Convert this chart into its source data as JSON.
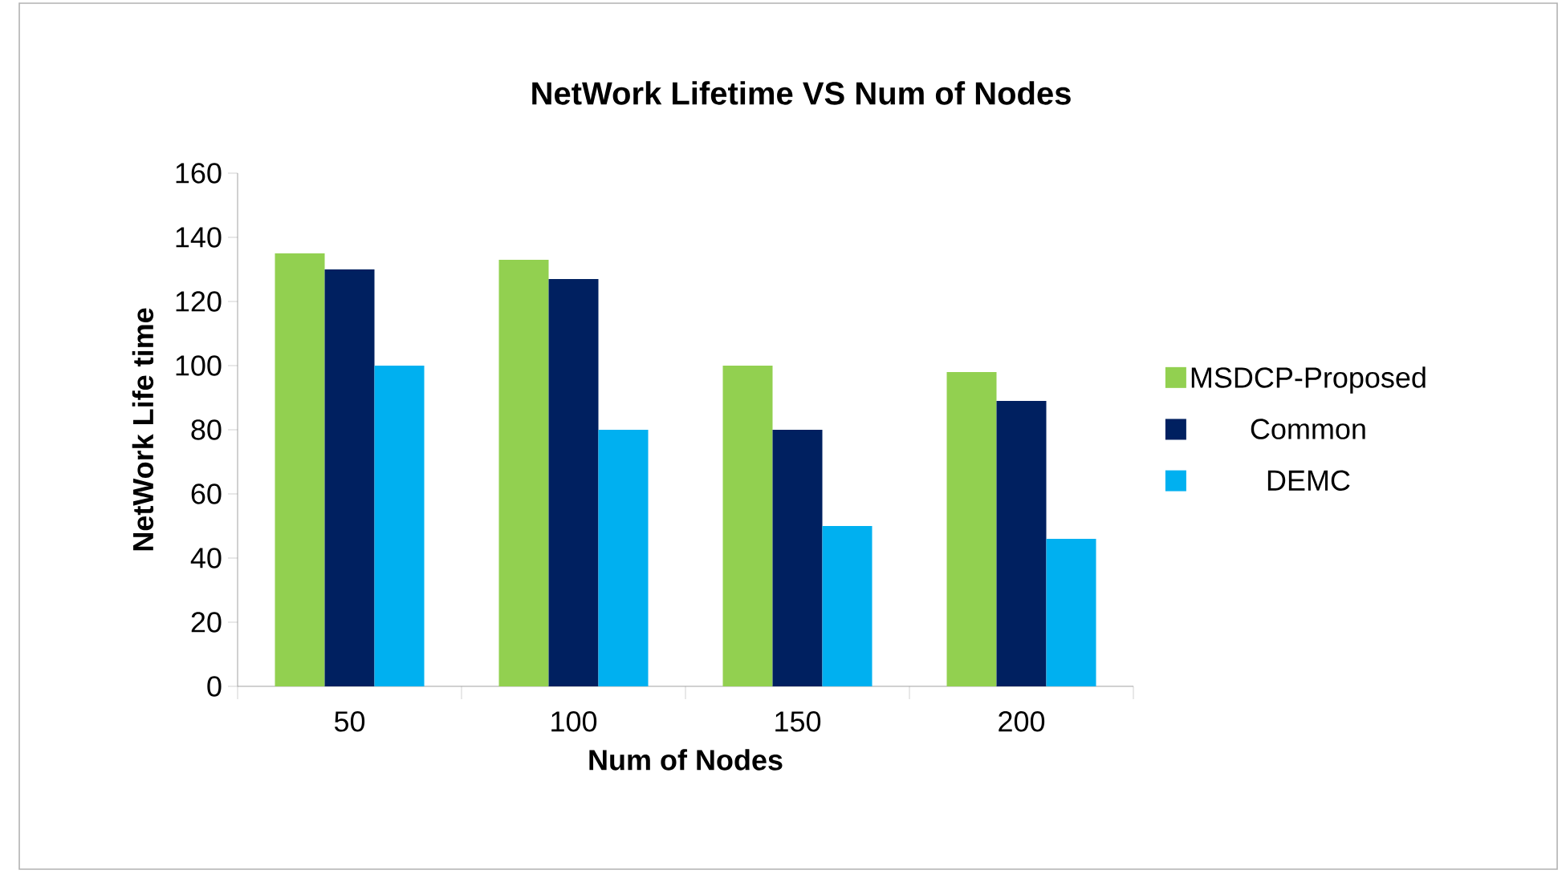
{
  "chart_data": {
    "type": "bar",
    "title": "NetWork Lifetime VS Num of Nodes",
    "xlabel": "Num of Nodes",
    "ylabel": "NetWork Life time",
    "categories": [
      "50",
      "100",
      "150",
      "200"
    ],
    "series": [
      {
        "name": "MSDCP-Proposed",
        "color": "#92d050",
        "values": [
          135,
          133,
          100,
          98
        ]
      },
      {
        "name": "Common",
        "color": "#002060",
        "values": [
          130,
          127,
          80,
          89
        ]
      },
      {
        "name": "DEMC",
        "color": "#00b0f0",
        "values": [
          100,
          80,
          50,
          46
        ]
      }
    ],
    "ylim": [
      0,
      160
    ],
    "yticks": [
      0,
      20,
      40,
      60,
      80,
      100,
      120,
      140,
      160
    ],
    "legend": "right"
  }
}
